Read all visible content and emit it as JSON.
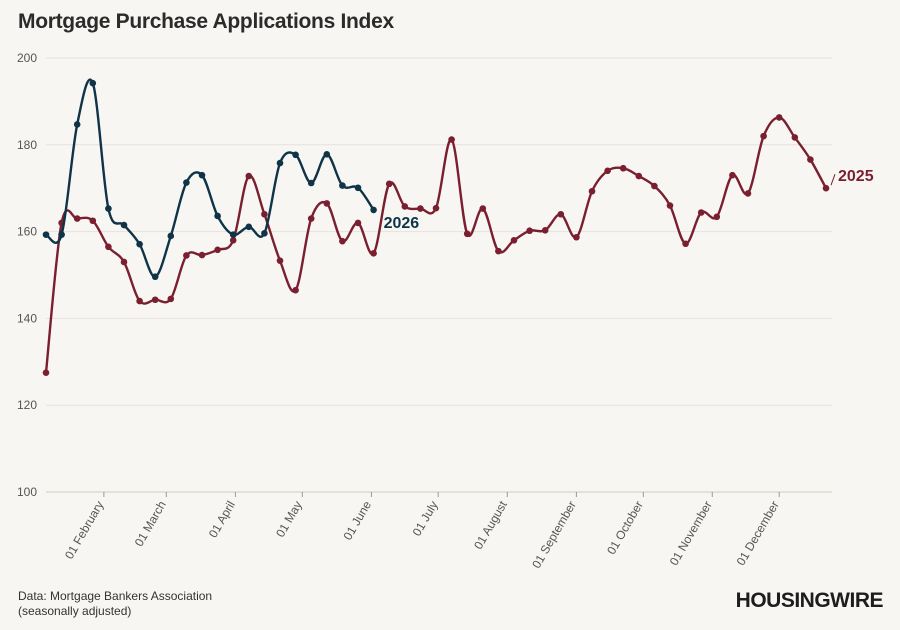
{
  "chart_data": {
    "type": "line",
    "title": "Mortgage Purchase Applications Index",
    "xlabel": "",
    "ylabel": "",
    "ylim": [
      100,
      200
    ],
    "yticks": [
      100,
      120,
      140,
      160,
      180,
      200
    ],
    "xticks": [
      {
        "label": "01 February",
        "week": 3.71
      },
      {
        "label": "01 March",
        "week": 7.71
      },
      {
        "label": "01 April",
        "week": 12.14
      },
      {
        "label": "01 May",
        "week": 16.43
      },
      {
        "label": "01 June",
        "week": 20.86
      },
      {
        "label": "01 July",
        "week": 25.14
      },
      {
        "label": "01 August",
        "week": 29.57
      },
      {
        "label": "01 September",
        "week": 34.0
      },
      {
        "label": "01 October",
        "week": 38.29
      },
      {
        "label": "01 November",
        "week": 42.71
      },
      {
        "label": "01 December",
        "week": 47.0
      }
    ],
    "grid": true,
    "legend": "inline labels at line ends",
    "series": [
      {
        "name": "2025",
        "color": "#7a1f30",
        "values": [
          127.5,
          162,
          163,
          162.5,
          156.5,
          153,
          144,
          144.3,
          144.5,
          154.5,
          154.6,
          155.8,
          158,
          172.8,
          164,
          153.3,
          146.5,
          163,
          166.5,
          157.8,
          162,
          155,
          171,
          165.8,
          165.3,
          165.4,
          181.2,
          159.5,
          165.3,
          155.5,
          158,
          160.2,
          160.3,
          164,
          158.7,
          169.3,
          174,
          174.6,
          172.8,
          170.5,
          166,
          157.2,
          164.4,
          163.4,
          173,
          168.8,
          182,
          186.3,
          181.7,
          176.6,
          170
        ]
      },
      {
        "name": "2026",
        "color": "#0f3347",
        "values": [
          159.3,
          159.3,
          184.7,
          194.2,
          165.3,
          161.5,
          157.1,
          149.6,
          159,
          171.3,
          173,
          163.6,
          159.3,
          161.1,
          159.6,
          175.8,
          177.7,
          171.2,
          177.8,
          170.6,
          170.1,
          165
        ]
      }
    ]
  },
  "footer": {
    "source_line1": "Data: Mortgage Bankers Association",
    "source_line2": "(seasonally adjusted)",
    "brand": "HOUSINGWIRE"
  }
}
